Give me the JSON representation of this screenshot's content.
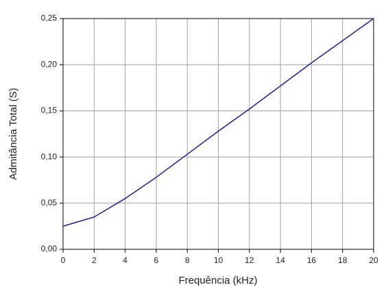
{
  "chart_data": {
    "type": "line",
    "x_label": "Frequência (kHz)",
    "y_label": "Admitância Total (S)",
    "x": [
      0,
      2,
      4,
      6,
      8,
      10,
      12,
      14,
      16,
      18,
      20
    ],
    "series": [
      {
        "name": "Admitância Total",
        "color": "#1f1f8f",
        "values": [
          0.025,
          0.035,
          0.055,
          0.078,
          0.103,
          0.128,
          0.152,
          0.177,
          0.202,
          0.226,
          0.25
        ]
      }
    ],
    "xlim": [
      0,
      20
    ],
    "xticks": [
      0,
      2,
      4,
      6,
      8,
      10,
      12,
      14,
      16,
      18,
      20
    ],
    "ylim": [
      0,
      0.25
    ],
    "yticks": [
      {
        "value": 0,
        "label": "0,00"
      },
      {
        "value": 0.05,
        "label": "0,05"
      },
      {
        "value": 0.1,
        "label": "0,10"
      },
      {
        "value": 0.15,
        "label": "0,15"
      },
      {
        "value": 0.2,
        "label": "0,20"
      },
      {
        "value": 0.25,
        "label": "0,25"
      }
    ],
    "grid": true
  }
}
